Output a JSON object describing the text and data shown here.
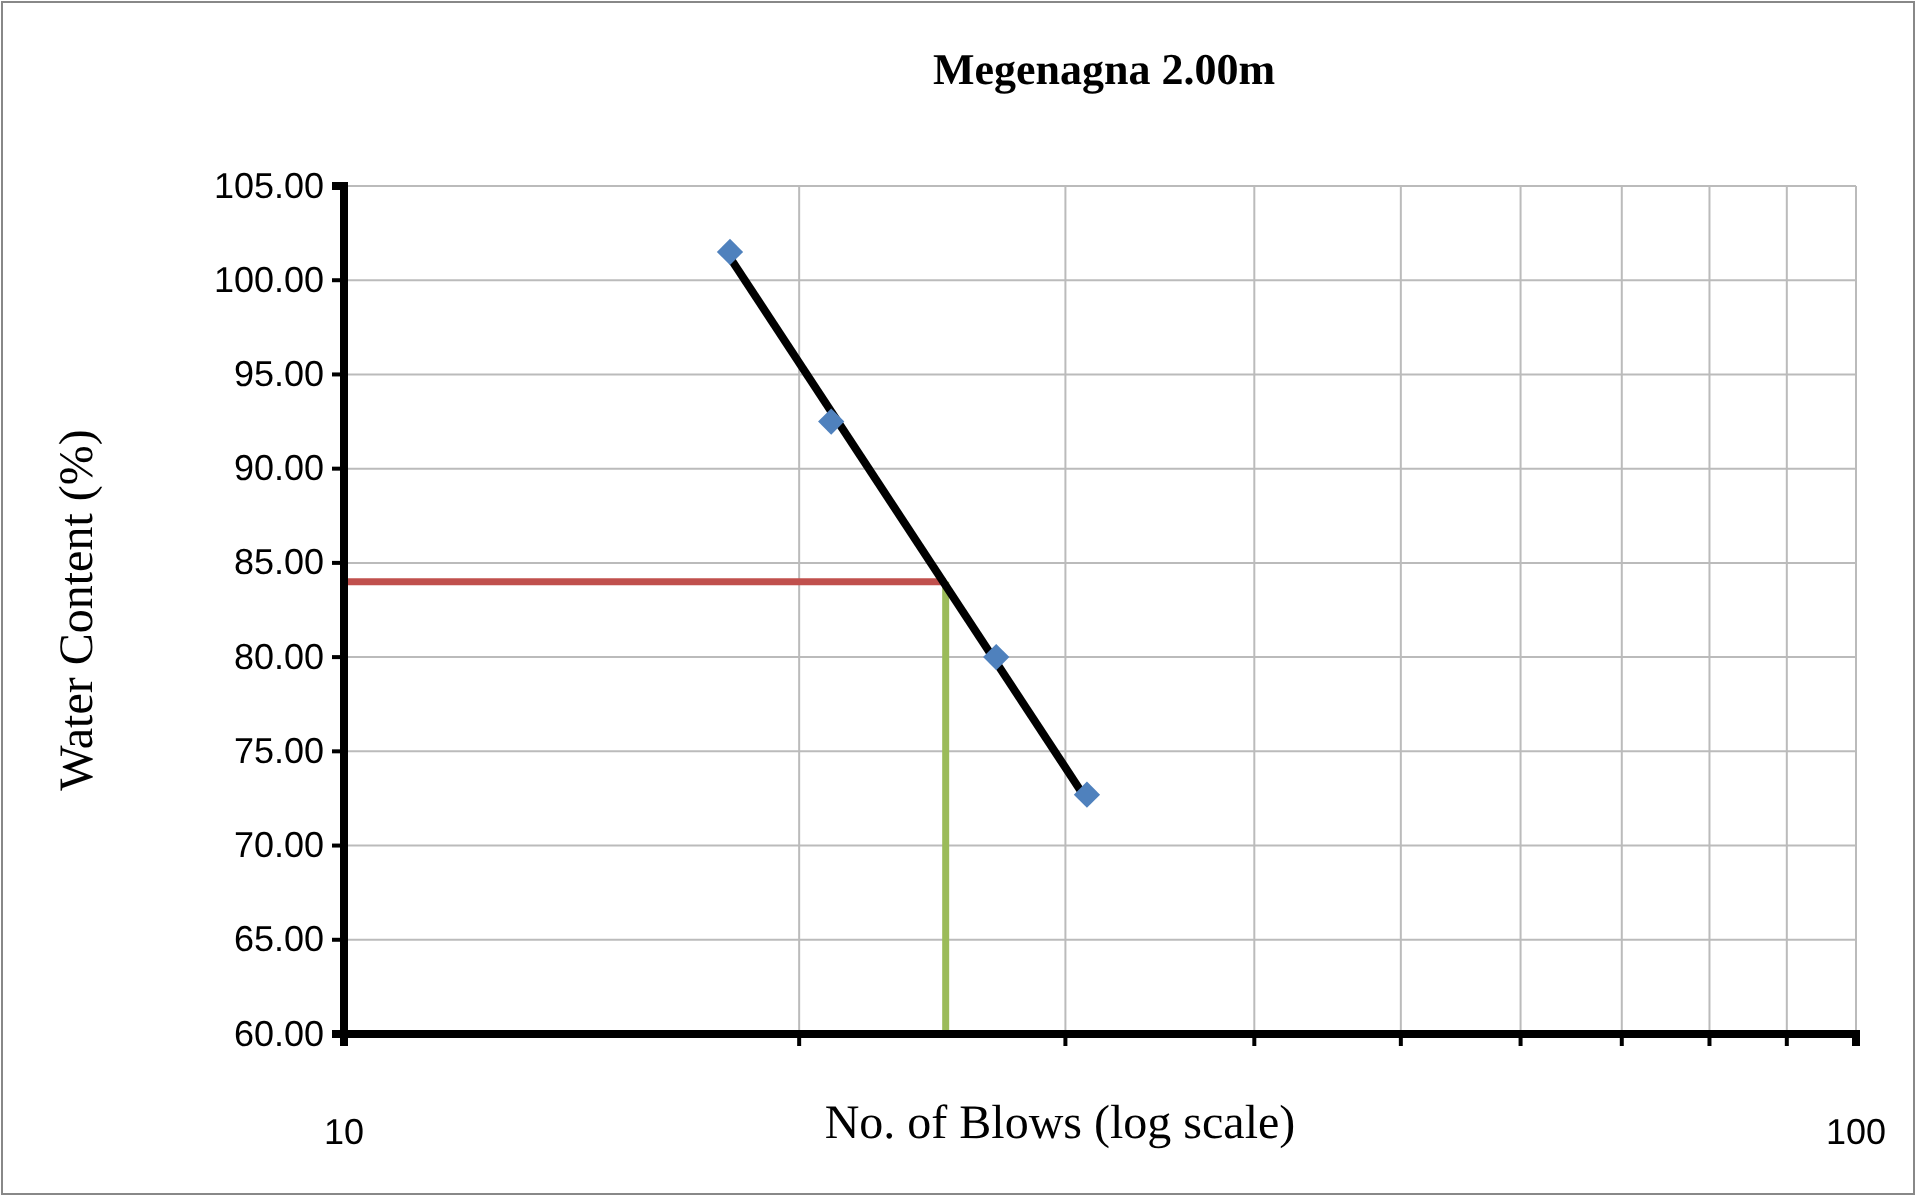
{
  "chart_data": {
    "type": "scatter",
    "title": "Megenagna 2.00m",
    "xlabel": "No. of Blows (log scale)",
    "ylabel": "Water Content (%)",
    "log": "x",
    "grid": true,
    "marker": "diamond",
    "line_style": "solid",
    "xlim": [
      10,
      100
    ],
    "xticks": [
      10,
      {
        "value": 20,
        "label": null
      },
      {
        "value": 30,
        "label": null
      },
      {
        "value": 40,
        "label": null
      },
      {
        "value": 50,
        "label": null
      },
      {
        "value": 60,
        "label": null
      },
      {
        "value": 70,
        "label": null
      },
      {
        "value": 80,
        "label": null
      },
      {
        "value": 90,
        "label": null
      },
      100
    ],
    "ylim": [
      60,
      105
    ],
    "yticks": [
      {
        "value": 60,
        "label": "60.00"
      },
      {
        "value": 65,
        "label": "65.00"
      },
      {
        "value": 70,
        "label": "70.00"
      },
      {
        "value": 75,
        "label": "75.00"
      },
      {
        "value": 80,
        "label": "80.00"
      },
      {
        "value": 85,
        "label": "85.00"
      },
      {
        "value": 90,
        "label": "90.00"
      },
      {
        "value": 95,
        "label": "95.00"
      },
      {
        "value": 100,
        "label": "100.00"
      },
      {
        "value": 105,
        "label": "105.00"
      }
    ],
    "series": [
      {
        "type": "line",
        "marker": "none",
        "color": "#c0504d",
        "x": [
          10,
          25
        ],
        "values": [
          84,
          84
        ]
      },
      {
        "type": "line",
        "marker": "none",
        "color": "#9bbb59",
        "x": [
          25,
          25
        ],
        "values": [
          60,
          84
        ]
      },
      {
        "type": "line",
        "marker": "none",
        "color": "#000000",
        "x": [
          18,
          31
        ],
        "values": [
          101.2,
          72.4
        ]
      },
      {
        "color": "#4f81bd",
        "x": [
          18,
          21,
          27,
          31
        ],
        "values": [
          101.5,
          92.5,
          80,
          72.7
        ]
      }
    ]
  }
}
